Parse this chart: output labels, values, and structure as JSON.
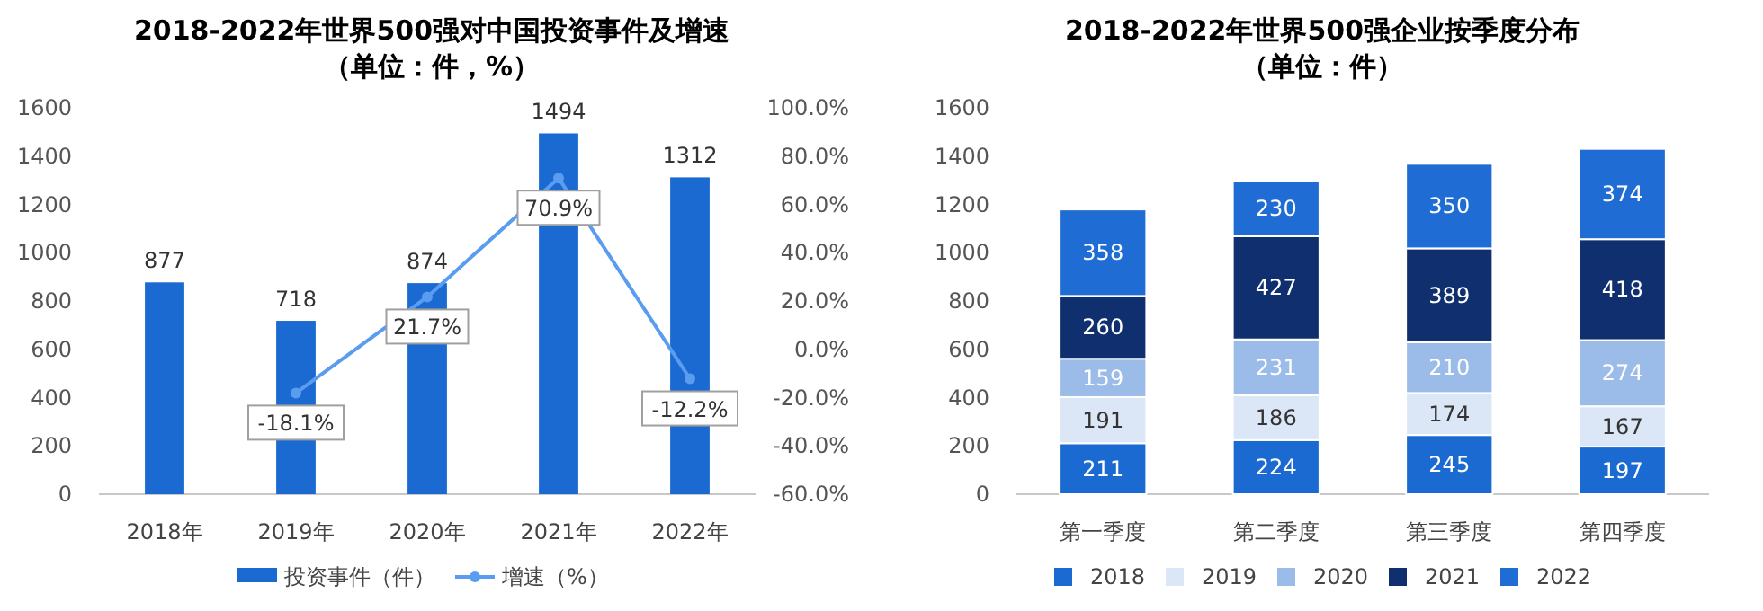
{
  "chart_data": [
    {
      "type": "bar",
      "title": "2018-2022年世界500强对中国投资事件及增速",
      "subtitle": "（单位：件，%）",
      "categories": [
        "2018年",
        "2019年",
        "2020年",
        "2021年",
        "2022年"
      ],
      "series": [
        {
          "name": "投资事件（件）",
          "color": "#1a6ad2",
          "values": [
            877,
            718,
            874,
            1494,
            1312
          ]
        },
        {
          "name": "增速（%）",
          "type": "line",
          "axis": "y2",
          "color": "#5a9cf0",
          "marker": "circle",
          "line_style": "solid",
          "values": [
            null,
            -18.1,
            21.7,
            70.9,
            -12.2
          ],
          "value_labels": [
            null,
            "-18.1%",
            "21.7%",
            "70.9%",
            "-12.2%"
          ]
        }
      ],
      "ylim": [
        0,
        1600
      ],
      "yticks": [
        0,
        200,
        400,
        600,
        800,
        1000,
        1200,
        1400,
        1600
      ],
      "y2lim": [
        -60,
        100
      ],
      "y2ticks": [
        {
          "value": -60,
          "label": "-60.0%"
        },
        {
          "value": -40,
          "label": "-40.0%"
        },
        {
          "value": -20,
          "label": "-20.0%"
        },
        {
          "value": 0,
          "label": "0.0%"
        },
        {
          "value": 20,
          "label": "20.0%"
        },
        {
          "value": 40,
          "label": "40.0%"
        },
        {
          "value": 60,
          "label": "60.0%"
        },
        {
          "value": 80,
          "label": "80.0%"
        },
        {
          "value": 100,
          "label": "100.0%"
        }
      ],
      "data_labels": true,
      "legend": "bottom",
      "grid": false
    },
    {
      "type": "bar",
      "stacked": true,
      "title": "2018-2022年世界500强企业按季度分布",
      "subtitle": "（单位：件）",
      "categories": [
        "第一季度",
        "第二季度",
        "第三季度",
        "第四季度"
      ],
      "series": [
        {
          "name": "2018",
          "color": "#1a6ad2",
          "values": [
            211,
            224,
            245,
            197
          ]
        },
        {
          "name": "2019",
          "color": "#dbe7f6",
          "values": [
            191,
            186,
            174,
            167
          ]
        },
        {
          "name": "2020",
          "color": "#9bbbe8",
          "values": [
            159,
            231,
            210,
            274
          ]
        },
        {
          "name": "2021",
          "color": "#0f2f6e",
          "values": [
            260,
            427,
            389,
            418
          ]
        },
        {
          "name": "2022",
          "color": "#1f6dd4",
          "values": [
            358,
            230,
            350,
            374
          ]
        }
      ],
      "ylim": [
        0,
        1600
      ],
      "yticks": [
        0,
        200,
        400,
        600,
        800,
        1000,
        1200,
        1400,
        1600
      ],
      "data_labels": true,
      "legend": "bottom",
      "grid": false
    }
  ]
}
